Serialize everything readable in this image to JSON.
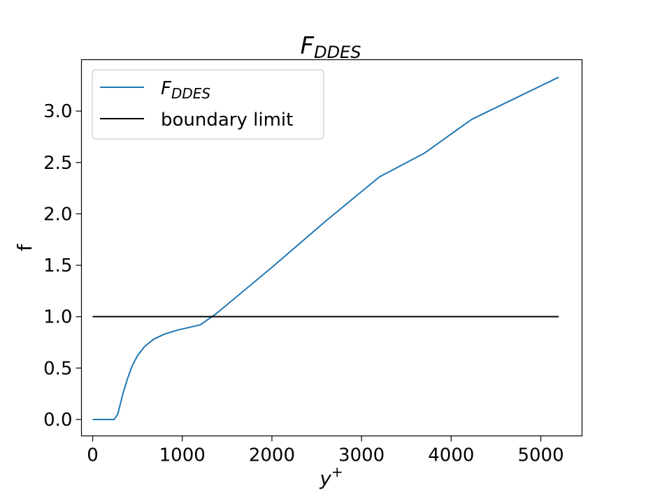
{
  "chart_data": {
    "type": "line",
    "title": {
      "main": "F",
      "sub": "DDES"
    },
    "xlabel": {
      "main": "y",
      "sup": "+"
    },
    "ylabel": "f",
    "xlim": [
      -125,
      5460
    ],
    "ylim": [
      -0.16,
      3.5
    ],
    "xticks": [
      0,
      1000,
      2000,
      3000,
      4000,
      5000
    ],
    "xtick_labels": [
      "0",
      "1000",
      "2000",
      "3000",
      "4000",
      "5000"
    ],
    "yticks": [
      0.0,
      0.5,
      1.0,
      1.5,
      2.0,
      2.5,
      3.0
    ],
    "ytick_labels": [
      "0.0",
      "0.5",
      "1.0",
      "1.5",
      "2.0",
      "2.5",
      "3.0"
    ],
    "grid": false,
    "legend_position": "top-left",
    "series": [
      {
        "name": {
          "main": "F",
          "sub": "DDES"
        },
        "color": "#1f77b4",
        "x": [
          0,
          240,
          280,
          340,
          390,
          440,
          500,
          580,
          680,
          800,
          950,
          1200,
          1380,
          2000,
          2600,
          3200,
          3700,
          4230,
          5200
        ],
        "y": [
          0.0,
          0.0,
          0.05,
          0.26,
          0.4,
          0.52,
          0.62,
          0.71,
          0.78,
          0.83,
          0.87,
          0.92,
          1.03,
          1.48,
          1.93,
          2.36,
          2.59,
          2.92,
          3.33
        ]
      },
      {
        "name": "boundary limit",
        "color": "#000000",
        "x": [
          0,
          5200
        ],
        "y": [
          1.0,
          1.0
        ]
      }
    ]
  }
}
